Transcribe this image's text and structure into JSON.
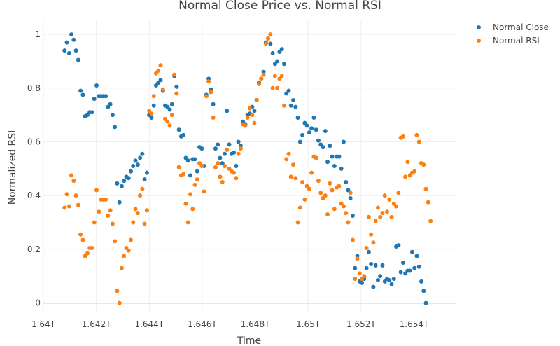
{
  "chart_data": {
    "type": "scatter",
    "title": "Normal Close Price vs. Normal RSI",
    "xlabel": "Time",
    "ylabel": "Normalized RSI",
    "xlim": [
      1640000000000.0,
      1655600000000.0
    ],
    "ylim": [
      -0.035,
      1.055
    ],
    "x_ticks": [
      1640000000000.0,
      1642000000000.0,
      1644000000000.0,
      1646000000000.0,
      1648000000000.0,
      1650000000000.0,
      1652000000000.0,
      1654000000000.0
    ],
    "x_tick_labels": [
      "1.64T",
      "1.642T",
      "1.644T",
      "1.646T",
      "1.648T",
      "1.65T",
      "1.652T",
      "1.654T"
    ],
    "y_ticks": [
      0,
      0.2,
      0.4,
      0.6,
      0.8,
      1
    ],
    "y_tick_labels": [
      "0",
      "0.2",
      "0.4",
      "0.6",
      "0.8",
      "1"
    ],
    "grid": true,
    "legend_position": "top-right",
    "x_day_step_ms": 86400000,
    "series": [
      {
        "name": "Normal Close",
        "color": "#1f77b4",
        "x_start": 1640800000000.0,
        "values": [
          0.94,
          0.97,
          0.93,
          1.0,
          0.98,
          0.94,
          0.905,
          0.79,
          0.775,
          0.695,
          0.7,
          0.71,
          0.71,
          0.76,
          0.81,
          0.77,
          0.77,
          0.77,
          0.77,
          0.73,
          0.74,
          0.7,
          0.655,
          0.445,
          0.375,
          0.435,
          0.455,
          0.47,
          0.465,
          0.49,
          0.51,
          0.53,
          0.515,
          0.54,
          0.555,
          0.46,
          0.485,
          0.7,
          0.69,
          0.735,
          0.81,
          0.82,
          0.83,
          0.79,
          0.735,
          0.73,
          0.72,
          0.74,
          0.845,
          0.805,
          0.645,
          0.62,
          0.625,
          0.54,
          0.53,
          0.475,
          0.535,
          0.535,
          0.49,
          0.58,
          0.575,
          0.51,
          0.775,
          0.835,
          0.795,
          0.74,
          0.575,
          0.59,
          0.54,
          0.52,
          0.555,
          0.715,
          0.59,
          0.555,
          0.56,
          0.51,
          0.6,
          0.585,
          0.675,
          0.665,
          0.7,
          0.705,
          0.73,
          0.715,
          0.755,
          0.82,
          0.835,
          0.86,
          0.97,
          0.985,
          0.965,
          0.93,
          0.89,
          0.9,
          0.935,
          0.945,
          0.89,
          0.78,
          0.79,
          0.735,
          0.755,
          0.73,
          0.69,
          0.6,
          0.625,
          0.67,
          0.66,
          0.635,
          0.65,
          0.69,
          0.645,
          0.605,
          0.59,
          0.58,
          0.64,
          0.525,
          0.585,
          0.545,
          0.51,
          0.545,
          0.545,
          0.5,
          0.6,
          0.45,
          0.42,
          0.39,
          0.325,
          0.13,
          0.175,
          0.08,
          0.075,
          0.09,
          0.13,
          0.19,
          0.145,
          0.06,
          0.14,
          0.085,
          0.1,
          0.14,
          0.08,
          0.09,
          0.085,
          0.07,
          0.09,
          0.21,
          0.215,
          0.115,
          0.15,
          0.11,
          0.12,
          0.12,
          0.19,
          0.13,
          0.175,
          0.135,
          0.08,
          0.045,
          0.0
        ]
      },
      {
        "name": "Normal RSI",
        "color": "#ff7f0e",
        "x_start": 1640800000000.0,
        "values": [
          0.355,
          0.405,
          0.36,
          0.475,
          0.455,
          0.4,
          0.365,
          0.255,
          0.235,
          0.175,
          0.185,
          0.205,
          0.205,
          0.3,
          0.42,
          0.34,
          0.385,
          0.385,
          0.385,
          0.325,
          0.345,
          0.295,
          0.23,
          0.045,
          0.0,
          0.13,
          0.175,
          0.205,
          0.195,
          0.235,
          0.3,
          0.35,
          0.335,
          0.4,
          0.425,
          0.295,
          0.345,
          0.715,
          0.705,
          0.77,
          0.855,
          0.865,
          0.885,
          0.795,
          0.685,
          0.675,
          0.66,
          0.7,
          0.85,
          0.78,
          0.505,
          0.475,
          0.48,
          0.37,
          0.3,
          0.405,
          0.35,
          0.44,
          0.46,
          0.52,
          0.51,
          0.415,
          0.77,
          0.825,
          0.785,
          0.69,
          0.505,
          0.52,
          0.47,
          0.45,
          0.51,
          0.57,
          0.5,
          0.49,
          0.485,
          0.465,
          0.555,
          0.575,
          0.665,
          0.66,
          0.69,
          0.725,
          0.7,
          0.67,
          0.755,
          0.815,
          0.835,
          0.85,
          0.965,
          0.985,
          1.0,
          0.8,
          0.845,
          0.8,
          0.835,
          0.845,
          0.735,
          0.535,
          0.555,
          0.47,
          0.515,
          0.465,
          0.3,
          0.355,
          0.45,
          0.385,
          0.435,
          0.425,
          0.485,
          0.545,
          0.54,
          0.455,
          0.41,
          0.39,
          0.4,
          0.33,
          0.445,
          0.42,
          0.35,
          0.43,
          0.435,
          0.37,
          0.36,
          0.335,
          0.3,
          0.41,
          0.235,
          0.09,
          0.165,
          0.11,
          0.09,
          0.1,
          0.205,
          0.32,
          0.255,
          0.225,
          0.305,
          0.355,
          0.32,
          0.335,
          0.4,
          0.34,
          0.385,
          0.32,
          0.37,
          0.36,
          0.41,
          0.615,
          0.62,
          0.47,
          0.525,
          0.475,
          0.485,
          0.49,
          0.625,
          0.6,
          0.52,
          0.515,
          0.425,
          0.375,
          0.305
        ]
      }
    ]
  }
}
